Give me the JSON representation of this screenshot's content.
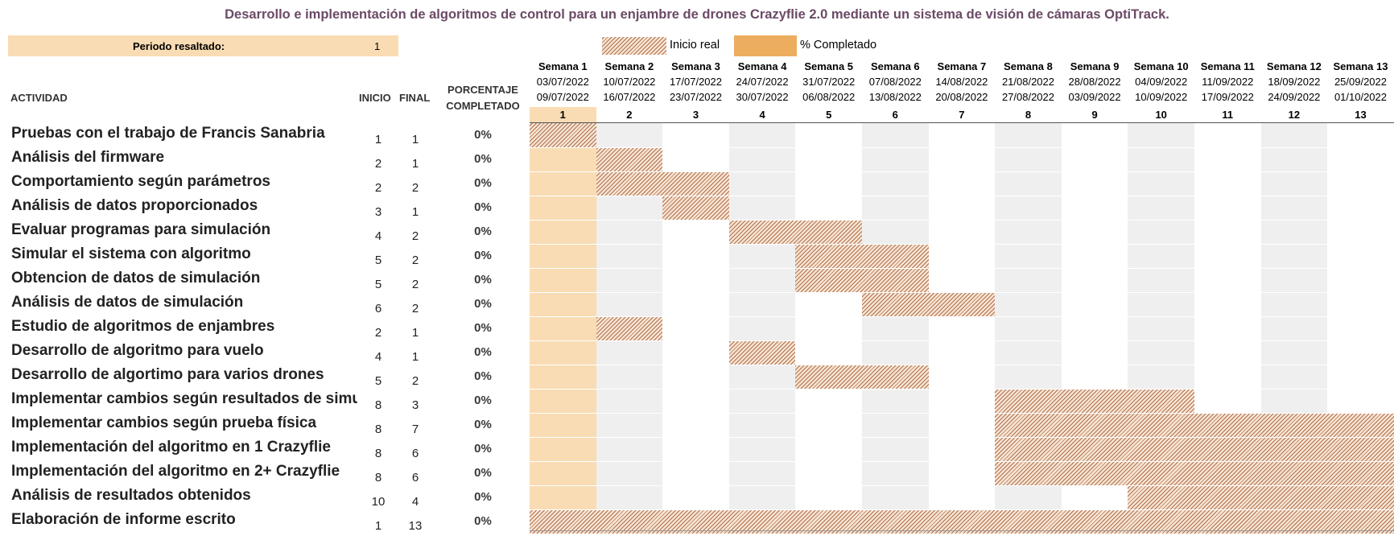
{
  "title": "Desarrollo e implementación de algoritmos de control para un enjambre de drones Crazyflie 2.0 mediante un sistema de visión de cámaras OptiTrack.",
  "period": {
    "label": "Periodo resaltado:",
    "value": "1"
  },
  "legend": {
    "hatch_label": "Inicio real",
    "solid_label": "% Completado"
  },
  "headers": {
    "activity": "ACTIVIDAD",
    "start": "INICIO",
    "end": "FINAL",
    "pct_line1": "PORCENTAJE",
    "pct_line2": "COMPLETADO"
  },
  "colors": {
    "highlight": "#f9dcb3",
    "completed": "#ecad5e",
    "hatch": "#b07050",
    "title": "#6b4a66",
    "stripe": "#efefef"
  },
  "chart_data": {
    "type": "gantt",
    "highlighted_period": 1,
    "weeks": [
      {
        "label": "Semana 1",
        "start": "03/07/2022",
        "end": "09/07/2022",
        "num": "1"
      },
      {
        "label": "Semana 2",
        "start": "10/07/2022",
        "end": "16/07/2022",
        "num": "2"
      },
      {
        "label": "Semana 3",
        "start": "17/07/2022",
        "end": "23/07/2022",
        "num": "3"
      },
      {
        "label": "Semana 4",
        "start": "24/07/2022",
        "end": "30/07/2022",
        "num": "4"
      },
      {
        "label": "Semana 5",
        "start": "31/07/2022",
        "end": "06/08/2022",
        "num": "5"
      },
      {
        "label": "Semana 6",
        "start": "07/08/2022",
        "end": "13/08/2022",
        "num": "6"
      },
      {
        "label": "Semana 7",
        "start": "14/08/2022",
        "end": "20/08/2022",
        "num": "7"
      },
      {
        "label": "Semana 8",
        "start": "21/08/2022",
        "end": "27/08/2022",
        "num": "8"
      },
      {
        "label": "Semana 9",
        "start": "28/08/2022",
        "end": "03/09/2022",
        "num": "9"
      },
      {
        "label": "Semana 10",
        "start": "04/09/2022",
        "end": "10/09/2022",
        "num": "10"
      },
      {
        "label": "Semana 11",
        "start": "11/09/2022",
        "end": "17/09/2022",
        "num": "11"
      },
      {
        "label": "Semana 12",
        "start": "18/09/2022",
        "end": "24/09/2022",
        "num": "12"
      },
      {
        "label": "Semana 13",
        "start": "25/09/2022",
        "end": "01/10/2022",
        "num": "13"
      }
    ],
    "tasks": [
      {
        "name": "Pruebas con el trabajo de Francis Sanabria",
        "start": 1,
        "duration": 1,
        "percent": "0%"
      },
      {
        "name": "Análisis del firmware",
        "start": 2,
        "duration": 1,
        "percent": "0%"
      },
      {
        "name": "Comportamiento según parámetros",
        "start": 2,
        "duration": 2,
        "percent": "0%"
      },
      {
        "name": "Análisis de datos proporcionados",
        "start": 3,
        "duration": 1,
        "percent": "0%"
      },
      {
        "name": "Evaluar programas para simulación",
        "start": 4,
        "duration": 2,
        "percent": "0%"
      },
      {
        "name": "Simular el sistema con algoritmo",
        "start": 5,
        "duration": 2,
        "percent": "0%"
      },
      {
        "name": "Obtencion de datos de simulación",
        "start": 5,
        "duration": 2,
        "percent": "0%"
      },
      {
        "name": "Análisis de datos de simulación",
        "start": 6,
        "duration": 2,
        "percent": "0%"
      },
      {
        "name": "Estudio de algoritmos de enjambres",
        "start": 2,
        "duration": 1,
        "percent": "0%"
      },
      {
        "name": "Desarrollo de algoritmo para vuelo",
        "start": 4,
        "duration": 1,
        "percent": "0%"
      },
      {
        "name": "Desarrollo de algortimo para varios drones",
        "start": 5,
        "duration": 2,
        "percent": "0%"
      },
      {
        "name": "Implementar cambios según resultados de simulación",
        "start": 8,
        "duration": 3,
        "percent": "0%"
      },
      {
        "name": "Implementar cambios según prueba física",
        "start": 8,
        "duration": 7,
        "percent": "0%"
      },
      {
        "name": "Implementación del algoritmo en 1 Crazyflie",
        "start": 8,
        "duration": 6,
        "percent": "0%"
      },
      {
        "name": "Implementación del algoritmo en 2+ Crazyflie",
        "start": 8,
        "duration": 6,
        "percent": "0%"
      },
      {
        "name": "Análisis de resultados obtenidos",
        "start": 10,
        "duration": 4,
        "percent": "0%"
      },
      {
        "name": "Elaboración de informe escrito",
        "start": 1,
        "duration": 13,
        "percent": "0%"
      }
    ]
  }
}
